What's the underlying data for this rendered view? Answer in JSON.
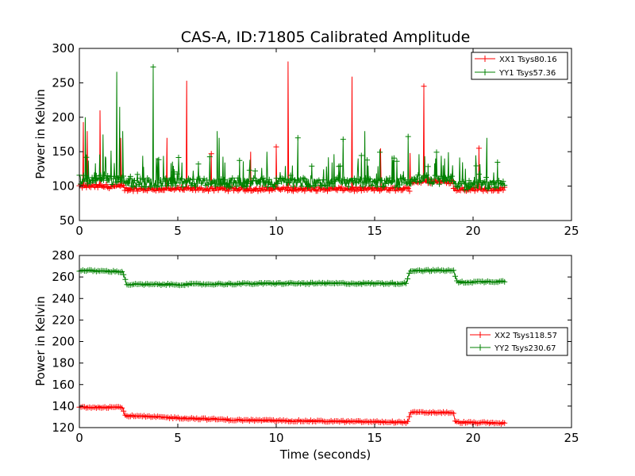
{
  "chart_data": [
    {
      "type": "line",
      "title": "CAS-A, ID:71805 Calibrated Amplitude",
      "xlabel": "",
      "ylabel": "Power in Kelvin",
      "xlim": [
        0,
        25
      ],
      "ylim": [
        50,
        300
      ],
      "xticks": [
        0,
        5,
        10,
        15,
        20,
        25
      ],
      "yticks": [
        50,
        100,
        150,
        200,
        250,
        300
      ],
      "grid": false,
      "legend": "top-right",
      "series": [
        {
          "name": "XX1 Tsys80.16",
          "color": "#ff0000",
          "segments": [
            {
              "x0": 0.0,
              "x1": 2.3,
              "base": 99
            },
            {
              "x0": 2.3,
              "x1": 16.8,
              "base": 95
            },
            {
              "x0": 16.8,
              "x1": 19.0,
              "base": 106
            },
            {
              "x0": 19.0,
              "x1": 21.6,
              "base": 95
            }
          ],
          "spikes": [
            {
              "x": 0.2,
              "y": 193
            },
            {
              "x": 0.4,
              "y": 180
            },
            {
              "x": 1.05,
              "y": 210
            },
            {
              "x": 2.1,
              "y": 170
            },
            {
              "x": 4.45,
              "y": 170
            },
            {
              "x": 5.45,
              "y": 253
            },
            {
              "x": 6.7,
              "y": 147
            },
            {
              "x": 8.7,
              "y": 150
            },
            {
              "x": 10.0,
              "y": 157
            },
            {
              "x": 10.6,
              "y": 281
            },
            {
              "x": 13.85,
              "y": 259
            },
            {
              "x": 15.3,
              "y": 155
            },
            {
              "x": 16.8,
              "y": 148
            },
            {
              "x": 17.5,
              "y": 245
            },
            {
              "x": 20.3,
              "y": 155
            }
          ]
        },
        {
          "name": "YY1 Tsys57.36",
          "color": "#008000",
          "segments": [
            {
              "x0": 0.0,
              "x1": 2.3,
              "base": 108
            },
            {
              "x0": 2.3,
              "x1": 16.8,
              "base": 104
            },
            {
              "x0": 16.8,
              "x1": 19.0,
              "base": 108
            },
            {
              "x0": 19.0,
              "x1": 21.6,
              "base": 100
            }
          ],
          "spikes": [
            {
              "x": 0.3,
              "y": 200
            },
            {
              "x": 1.2,
              "y": 175
            },
            {
              "x": 1.9,
              "y": 266
            },
            {
              "x": 2.05,
              "y": 215
            },
            {
              "x": 2.2,
              "y": 180
            },
            {
              "x": 3.75,
              "y": 273
            },
            {
              "x": 7.1,
              "y": 170
            },
            {
              "x": 7.0,
              "y": 180
            },
            {
              "x": 11.1,
              "y": 170
            },
            {
              "x": 13.4,
              "y": 168
            },
            {
              "x": 14.5,
              "y": 180
            },
            {
              "x": 16.7,
              "y": 172
            },
            {
              "x": 20.7,
              "y": 170
            }
          ]
        }
      ]
    },
    {
      "type": "line",
      "title": "",
      "xlabel": "Time (seconds)",
      "ylabel": "Power in Kelvin",
      "xlim": [
        0,
        25
      ],
      "ylim": [
        120,
        280
      ],
      "xticks": [
        0,
        5,
        10,
        15,
        20,
        25
      ],
      "yticks": [
        120,
        140,
        160,
        180,
        200,
        220,
        240,
        260,
        280
      ],
      "grid": false,
      "legend": "center-right",
      "series": [
        {
          "name": "XX2 Tsys118.57",
          "color": "#ff0000",
          "x": [
            0.0,
            2.2,
            2.3,
            5.0,
            8.0,
            12.0,
            16.7,
            16.8,
            19.0,
            19.1,
            21.6
          ],
          "y": [
            139,
            139,
            131,
            129,
            127,
            126,
            125,
            134,
            134,
            125,
            124
          ]
        },
        {
          "name": "YY2 Tsys230.67",
          "color": "#008000",
          "x": [
            0.0,
            2.2,
            2.4,
            5.0,
            10.0,
            16.6,
            16.8,
            19.0,
            19.2,
            21.6
          ],
          "y": [
            266,
            265,
            253,
            253,
            254,
            254,
            266,
            266,
            255,
            256
          ]
        }
      ]
    }
  ]
}
